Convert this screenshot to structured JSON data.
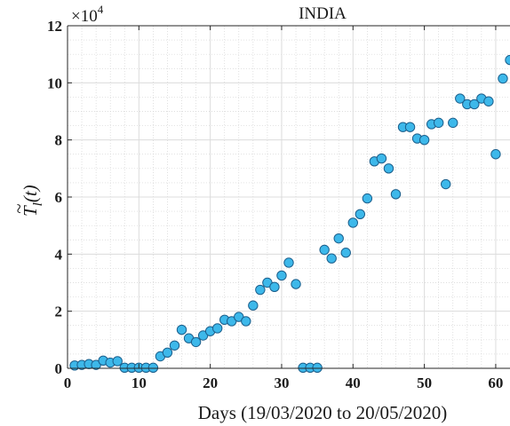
{
  "chart_data": {
    "type": "scatter",
    "title": "INDIA",
    "xlabel": "Days (19/03/2020 to 20/05/2020)",
    "ylabel": "T̃_l(t)",
    "ylabel_parts": {
      "base": "T",
      "sub": "l",
      "arg": "(t)"
    },
    "y_exponent_label": {
      "base": "×10",
      "exp": "4"
    },
    "xlim": [
      0,
      62
    ],
    "ylim": [
      0,
      12
    ],
    "y_scale_multiplier": 10000,
    "xticks": [
      0,
      10,
      20,
      30,
      40,
      50,
      60
    ],
    "yticks": [
      0,
      2,
      4,
      6,
      8,
      10,
      12
    ],
    "grid": true,
    "minor_grid": true,
    "marker_color": "#3db8ea",
    "marker_edge_color": "#1c5f8c",
    "x": [
      1,
      2,
      3,
      4,
      5,
      6,
      7,
      8,
      9,
      10,
      11,
      12,
      13,
      14,
      15,
      16,
      17,
      18,
      19,
      20,
      21,
      22,
      23,
      24,
      25,
      26,
      27,
      28,
      29,
      30,
      31,
      32,
      33,
      34,
      35,
      36,
      37,
      38,
      39,
      40,
      41,
      42,
      43,
      44,
      45,
      46,
      47,
      48,
      49,
      50,
      51,
      52,
      53,
      54,
      55,
      56,
      57,
      58,
      59,
      60,
      61,
      62
    ],
    "values": [
      0.1,
      0.12,
      0.15,
      0.12,
      0.27,
      0.2,
      0.25,
      0.02,
      0.02,
      0.02,
      0.02,
      0.02,
      0.42,
      0.55,
      0.8,
      1.35,
      1.05,
      0.92,
      1.15,
      1.3,
      1.4,
      1.7,
      1.65,
      1.8,
      1.65,
      2.2,
      2.75,
      3.0,
      2.85,
      3.25,
      3.7,
      2.95,
      0.02,
      0.02,
      0.02,
      4.15,
      3.85,
      4.55,
      4.05,
      5.1,
      5.4,
      5.95,
      7.25,
      7.35,
      7.0,
      6.1,
      8.45,
      8.45,
      8.05,
      8.0,
      8.55,
      8.6,
      6.45,
      8.6,
      9.45,
      9.25,
      9.25,
      9.45,
      9.35,
      7.5,
      10.15,
      10.8
    ]
  }
}
